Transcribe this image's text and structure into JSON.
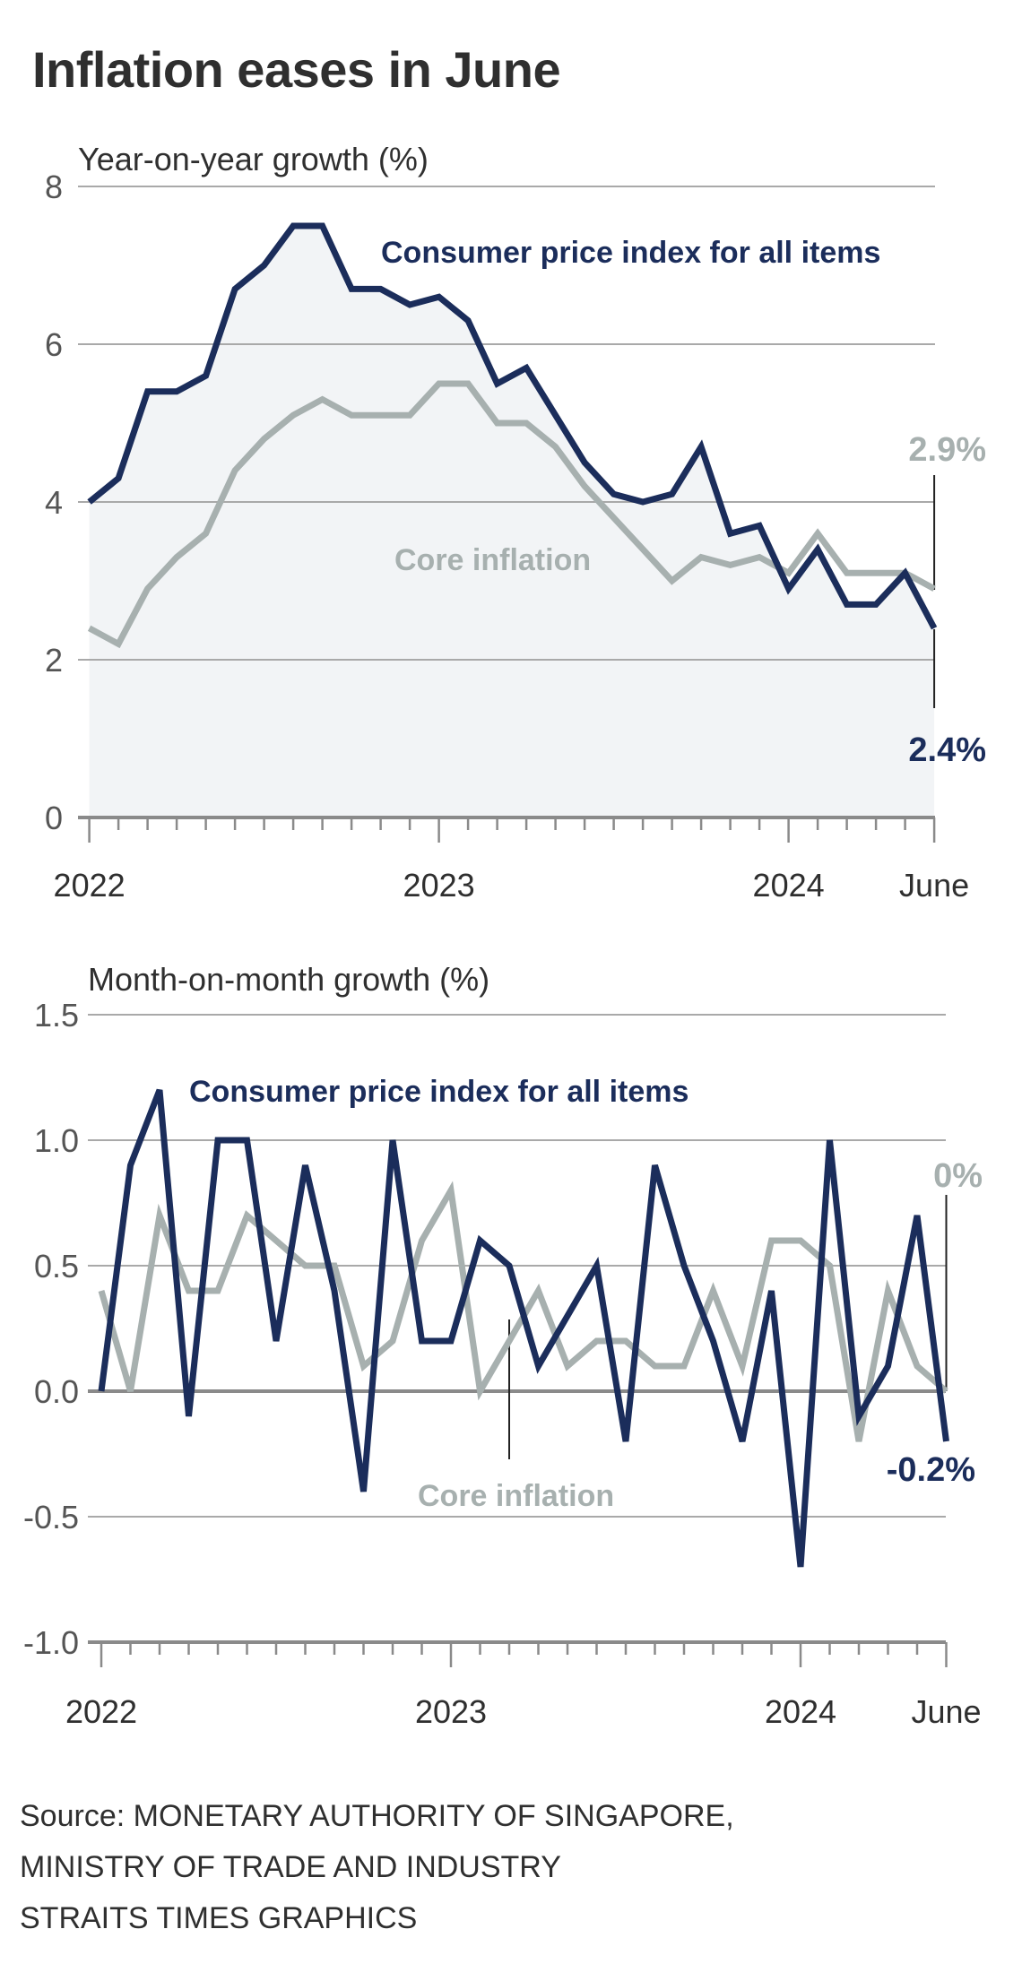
{
  "title": "Inflation eases in June",
  "colors": {
    "cpi": "#1b2d5b",
    "core": "#a7b0af",
    "area_fill": "#f2f4f6",
    "grid": "#a9a9a9"
  },
  "source_lines": [
    "Source: MONETARY AUTHORITY OF SINGAPORE,",
    "MINISTRY OF TRADE AND INDUSTRY",
    "STRAITS TIMES GRAPHICS"
  ],
  "chart_data": [
    {
      "id": "yoy",
      "type": "line",
      "title": "Year-on-year growth (%)",
      "ylabel": "Year-on-year growth (%)",
      "xlabel": "",
      "ylim": [
        0,
        8
      ],
      "yticks": [
        0,
        2,
        4,
        6,
        8
      ],
      "ytick_labels": [
        "0",
        "2",
        "4",
        "6",
        "8"
      ],
      "grid": true,
      "x": [
        "Jan 2022",
        "Feb 2022",
        "Mar 2022",
        "Apr 2022",
        "May 2022",
        "Jun 2022",
        "Jul 2022",
        "Aug 2022",
        "Sep 2022",
        "Oct 2022",
        "Nov 2022",
        "Dec 2022",
        "Jan 2023",
        "Feb 2023",
        "Mar 2023",
        "Apr 2023",
        "May 2023",
        "Jun 2023",
        "Jul 2023",
        "Aug 2023",
        "Sep 2023",
        "Oct 2023",
        "Nov 2023",
        "Dec 2023",
        "Jan 2024",
        "Feb 2024",
        "Mar 2024",
        "Apr 2024",
        "May 2024",
        "Jun 2024"
      ],
      "xtick_labels": [
        {
          "index": 0,
          "label": "2022"
        },
        {
          "index": 12,
          "label": "2023"
        },
        {
          "index": 24,
          "label": "2024"
        },
        {
          "index": 29,
          "label": "June"
        }
      ],
      "series": [
        {
          "name": "Consumer price index for all items",
          "color": "#1b2d5b",
          "area": true,
          "values": [
            4.0,
            4.3,
            5.4,
            5.4,
            5.6,
            6.7,
            7.0,
            7.5,
            7.5,
            6.7,
            6.7,
            6.5,
            6.6,
            6.3,
            5.5,
            5.7,
            5.1,
            4.5,
            4.1,
            4.0,
            4.1,
            4.7,
            3.6,
            3.7,
            2.9,
            3.4,
            2.7,
            2.7,
            3.1,
            2.4
          ],
          "end_label": "2.4%"
        },
        {
          "name": "Core inflation",
          "color": "#a7b0af",
          "area": false,
          "values": [
            2.4,
            2.2,
            2.9,
            3.3,
            3.6,
            4.4,
            4.8,
            5.1,
            5.3,
            5.1,
            5.1,
            5.1,
            5.5,
            5.5,
            5.0,
            5.0,
            4.7,
            4.2,
            3.8,
            3.4,
            3.0,
            3.3,
            3.2,
            3.3,
            3.1,
            3.6,
            3.1,
            3.1,
            3.1,
            2.9
          ],
          "end_label": "2.9%"
        }
      ],
      "annotations": [
        "Consumer price index for all items",
        "Core inflation",
        "2.9%",
        "2.4%"
      ]
    },
    {
      "id": "mom",
      "type": "line",
      "title": "Month-on-month growth (%)",
      "ylabel": "Month-on-month growth (%)",
      "xlabel": "",
      "ylim": [
        -1.0,
        1.5
      ],
      "yticks": [
        -1.0,
        -0.5,
        0.0,
        0.5,
        1.0,
        1.5
      ],
      "ytick_labels": [
        "-1.0",
        "-0.5",
        "0.0",
        "0.5",
        "1.0",
        "1.5"
      ],
      "grid": true,
      "x": [
        "Jan 2022",
        "Feb 2022",
        "Mar 2022",
        "Apr 2022",
        "May 2022",
        "Jun 2022",
        "Jul 2022",
        "Aug 2022",
        "Sep 2022",
        "Oct 2022",
        "Nov 2022",
        "Dec 2022",
        "Jan 2023",
        "Feb 2023",
        "Mar 2023",
        "Apr 2023",
        "May 2023",
        "Jun 2023",
        "Jul 2023",
        "Aug 2023",
        "Sep 2023",
        "Oct 2023",
        "Nov 2023",
        "Dec 2023",
        "Jan 2024",
        "Feb 2024",
        "Mar 2024",
        "Apr 2024",
        "May 2024",
        "Jun 2024"
      ],
      "xtick_labels": [
        {
          "index": 0,
          "label": "2022"
        },
        {
          "index": 12,
          "label": "2023"
        },
        {
          "index": 24,
          "label": "2024"
        },
        {
          "index": 29,
          "label": "June"
        }
      ],
      "series": [
        {
          "name": "Consumer price index for all items",
          "color": "#1b2d5b",
          "area": false,
          "values": [
            0.0,
            0.9,
            1.2,
            -0.1,
            1.0,
            1.0,
            0.2,
            0.9,
            0.4,
            -0.4,
            1.0,
            0.2,
            0.2,
            0.6,
            0.5,
            0.1,
            0.3,
            0.5,
            -0.2,
            0.9,
            0.5,
            0.2,
            -0.2,
            0.4,
            -0.7,
            1.0,
            -0.1,
            0.1,
            0.7,
            -0.2
          ],
          "end_label": "-0.2%"
        },
        {
          "name": "Core inflation",
          "color": "#a7b0af",
          "area": false,
          "values": [
            0.4,
            0.0,
            0.7,
            0.4,
            0.4,
            0.7,
            0.6,
            0.5,
            0.5,
            0.1,
            0.2,
            0.6,
            0.8,
            0.0,
            0.2,
            0.4,
            0.1,
            0.2,
            0.2,
            0.1,
            0.1,
            0.4,
            0.1,
            0.6,
            0.6,
            0.5,
            -0.2,
            0.4,
            0.1,
            0.0
          ],
          "end_label": "0%"
        }
      ],
      "annotations": [
        "Consumer price index for all items",
        "Core inflation",
        "0%",
        "-0.2%"
      ]
    }
  ]
}
